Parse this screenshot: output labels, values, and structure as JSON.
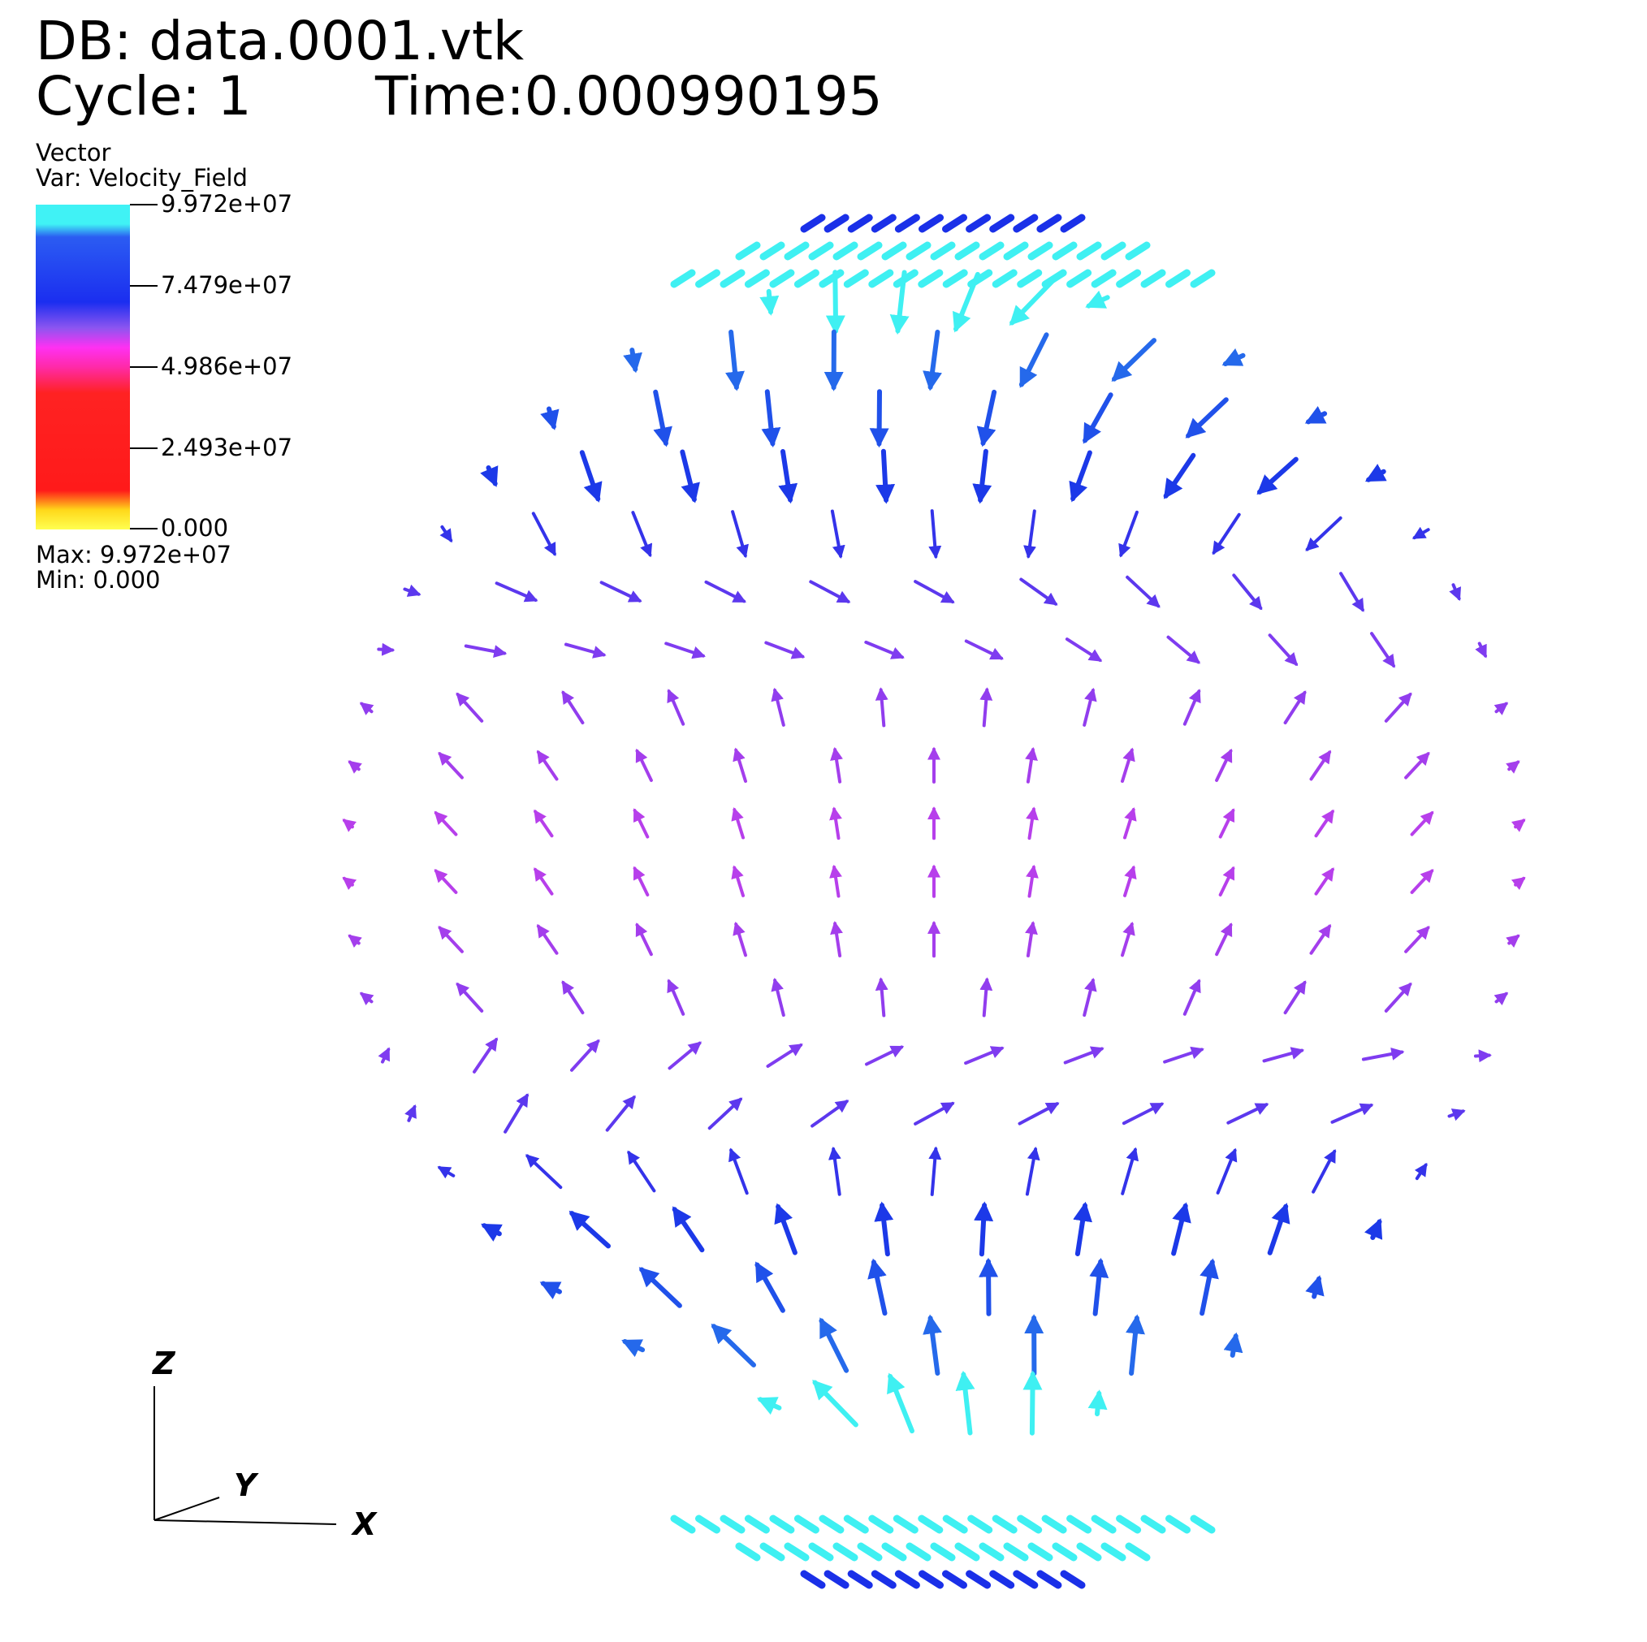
{
  "header": {
    "db": "DB: data.0001.vtk",
    "cycle": "Cycle: 1",
    "time": "Time:0.000990195"
  },
  "legend": {
    "title": "Vector",
    "var": "Var: Velocity_Field",
    "ticks": [
      "9.972e+07",
      "7.479e+07",
      "4.986e+07",
      "2.493e+07",
      "0.000"
    ],
    "max": "Max:  9.972e+07",
    "min": "Min:  0.000",
    "colors": {
      "cyan": "#40f2f5",
      "blue": "#1b2ef0",
      "magenta": "#ff30f2",
      "red": "#ff2222",
      "yellow": "#ffff50"
    }
  },
  "axes_triad": {
    "z": "Z",
    "y": "Y",
    "x": "X"
  },
  "field": {
    "colors": {
      "cyan": "#3ff0f2",
      "blue": "#1a30e8",
      "purple": "#7a3cf0",
      "magenta": "#c040ea"
    }
  }
}
